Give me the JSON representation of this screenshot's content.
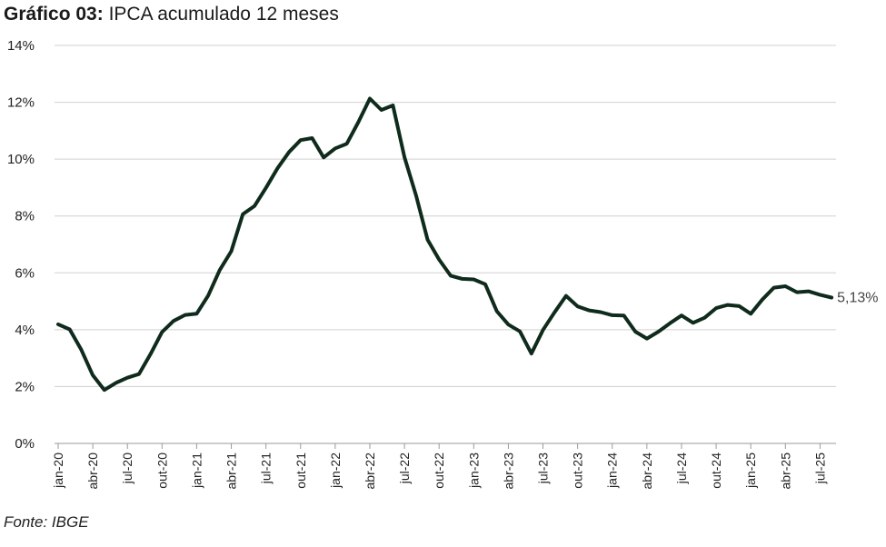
{
  "title": {
    "bold": "Gráfico 03:",
    "text": "IPCA acumulado 12 meses"
  },
  "source": "Fonte: IBGE",
  "colors": {
    "line": "#0f2b1c",
    "grid": "#d0d0d0",
    "axis": "#9a9a9a"
  },
  "chart_data": {
    "type": "line",
    "title": "IPCA acumulado 12 meses",
    "ylabel": "",
    "xlabel": "",
    "ylim": [
      0,
      14
    ],
    "yticks": [
      0,
      2,
      4,
      6,
      8,
      10,
      12,
      14
    ],
    "ytick_labels": [
      "0%",
      "2%",
      "4%",
      "6%",
      "8%",
      "10%",
      "12%",
      "14%"
    ],
    "xtick_labels": [
      "jan-20",
      "abr-20",
      "jul-20",
      "out-20",
      "jan-21",
      "abr-21",
      "jul-21",
      "out-21",
      "jan-22",
      "abr-22",
      "jul-22",
      "out-22",
      "jan-23",
      "abr-23",
      "jul-23",
      "out-23",
      "jan-24",
      "abr-24",
      "jul-24",
      "out-24",
      "jan-25",
      "abr-25",
      "jul-25"
    ],
    "xtick_every": 3,
    "grid": true,
    "end_label": "5,13%",
    "series": [
      {
        "name": "IPCA acumulado 12 meses",
        "values": [
          4.19,
          4.01,
          3.3,
          2.4,
          1.88,
          2.13,
          2.31,
          2.44,
          3.14,
          3.92,
          4.31,
          4.52,
          4.56,
          5.2,
          6.1,
          6.76,
          8.06,
          8.35,
          8.99,
          9.68,
          10.25,
          10.67,
          10.74,
          10.06,
          10.38,
          10.54,
          11.3,
          12.13,
          11.73,
          11.89,
          10.07,
          8.73,
          7.17,
          6.47,
          5.9,
          5.79,
          5.77,
          5.6,
          4.65,
          4.18,
          3.94,
          3.16,
          3.99,
          4.61,
          5.19,
          4.82,
          4.68,
          4.62,
          4.51,
          4.5,
          3.93,
          3.69,
          3.93,
          4.23,
          4.5,
          4.24,
          4.42,
          4.76,
          4.87,
          4.83,
          4.56,
          5.06,
          5.48,
          5.53,
          5.32,
          5.35,
          5.23,
          5.13
        ]
      }
    ]
  }
}
